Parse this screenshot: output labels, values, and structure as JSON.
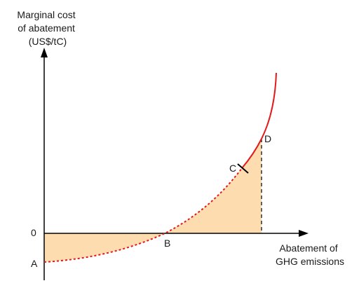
{
  "y_axis_label": [
    "Marginal cost",
    "of abatement",
    "(US$/tC)"
  ],
  "x_axis_label": [
    "Abatement of",
    "GHG emissions"
  ],
  "origin_label": "0",
  "point_labels": {
    "A": "A",
    "B": "B",
    "C": "C",
    "D": "D"
  },
  "colors": {
    "curve": "#e31a1a",
    "fill": "#fddcb0",
    "axis": "#000000",
    "dashed_line": "#000000"
  }
}
